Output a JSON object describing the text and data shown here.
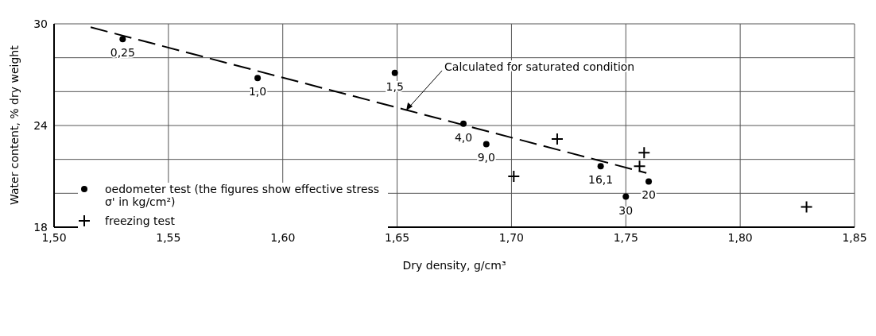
{
  "chart_data": {
    "type": "scatter",
    "xlabel": "Dry density, g/cm³",
    "ylabel": "Water content, % dry weight",
    "xlim": [
      1.5,
      1.85
    ],
    "xticks": [
      {
        "value": 1.5,
        "label": "1,50"
      },
      {
        "value": 1.55,
        "label": "1,55"
      },
      {
        "value": 1.6,
        "label": "1,60"
      },
      {
        "value": 1.65,
        "label": "1,65"
      },
      {
        "value": 1.7,
        "label": "1,70"
      },
      {
        "value": 1.75,
        "label": "1,75"
      },
      {
        "value": 1.8,
        "label": "1,80"
      },
      {
        "value": 1.85,
        "label": "1,85"
      }
    ],
    "ylim": [
      18,
      30
    ],
    "yticks": [
      18,
      {
        "value": 20,
        "label": null
      },
      {
        "value": 22,
        "label": null
      },
      24,
      {
        "value": 26,
        "label": null
      },
      {
        "value": 28,
        "label": null
      },
      30
    ],
    "grid": true,
    "legend": "bottom left",
    "series": [
      {
        "name": "oedometer test (the figures show effective stress σ' in kg/cm²)",
        "marker": "circle",
        "color": "#000000",
        "x": [
          1.53,
          1.589,
          1.649,
          1.679,
          1.689,
          1.739,
          1.76,
          1.75
        ],
        "values": [
          29.1,
          26.8,
          27.1,
          24.1,
          22.9,
          21.6,
          20.7,
          19.8
        ]
      },
      {
        "name": "freezing test",
        "marker": "cross",
        "color": "#000000",
        "x": [
          1.72,
          1.758,
          1.756,
          1.701,
          1.829
        ],
        "values": [
          23.2,
          22.4,
          21.6,
          21.0,
          19.2
        ]
      },
      {
        "type": "line",
        "line_style": "dashed",
        "marker": "none",
        "color": "#000000",
        "x": [
          1.516,
          1.759
        ],
        "values": [
          29.8,
          21.2
        ]
      }
    ],
    "annotations": [
      {
        "text": "Calculated  for saturated condition",
        "x": 1.654,
        "y": 24.8
      },
      {
        "text": "0,25",
        "x": 1.53,
        "y": 29.1
      },
      {
        "text": "1,0",
        "x": 1.589,
        "y": 26.8
      },
      {
        "text": "1,5",
        "x": 1.649,
        "y": 27.1
      },
      {
        "text": "4,0",
        "x": 1.679,
        "y": 24.1
      },
      {
        "text": "9,0",
        "x": 1.689,
        "y": 22.9
      },
      {
        "text": "16,1",
        "x": 1.739,
        "y": 21.6
      },
      {
        "text": "20",
        "x": 1.76,
        "y": 20.7
      },
      {
        "text": "30",
        "x": 1.75,
        "y": 19.8
      }
    ]
  }
}
